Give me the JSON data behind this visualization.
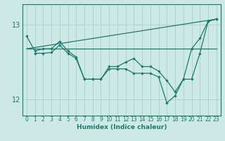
{
  "xlabel": "Humidex (Indice chaleur)",
  "xlim": [
    -0.5,
    23.5
  ],
  "ylim": [
    11.78,
    13.28
  ],
  "yticks": [
    12,
    13
  ],
  "xticks": [
    0,
    1,
    2,
    3,
    4,
    5,
    6,
    7,
    8,
    9,
    10,
    11,
    12,
    13,
    14,
    15,
    16,
    17,
    18,
    19,
    20,
    21,
    22,
    23
  ],
  "background_color": "#cce9e5",
  "grid_color": "#aad4cf",
  "line_color": "#1e7a6d",
  "series": [
    {
      "x": [
        0,
        23
      ],
      "y": [
        12.68,
        13.08
      ],
      "markers": false
    },
    {
      "x": [
        0,
        23
      ],
      "y": [
        12.68,
        12.68
      ],
      "markers": false
    },
    {
      "x": [
        0,
        1,
        2,
        3,
        4,
        5,
        6,
        7,
        8,
        9,
        10,
        11,
        12,
        13,
        14,
        15,
        16,
        17,
        18,
        19,
        20,
        21,
        22,
        23
      ],
      "y": [
        12.85,
        12.65,
        12.68,
        12.68,
        12.78,
        12.65,
        12.57,
        12.27,
        12.27,
        12.27,
        12.44,
        12.44,
        12.5,
        12.55,
        12.44,
        12.44,
        12.38,
        12.25,
        12.1,
        12.27,
        12.68,
        12.82,
        13.05,
        13.08
      ],
      "markers": true
    },
    {
      "x": [
        1,
        2,
        3,
        4,
        5,
        6,
        7,
        8,
        9,
        10,
        11,
        12,
        13,
        14,
        15,
        16,
        17,
        18,
        19,
        20,
        21,
        22,
        23
      ],
      "y": [
        12.62,
        12.62,
        12.63,
        12.73,
        12.62,
        12.55,
        12.27,
        12.27,
        12.27,
        12.41,
        12.41,
        12.41,
        12.35,
        12.35,
        12.35,
        12.3,
        11.95,
        12.05,
        12.27,
        12.27,
        12.62,
        13.05,
        13.08
      ],
      "markers": true
    }
  ]
}
